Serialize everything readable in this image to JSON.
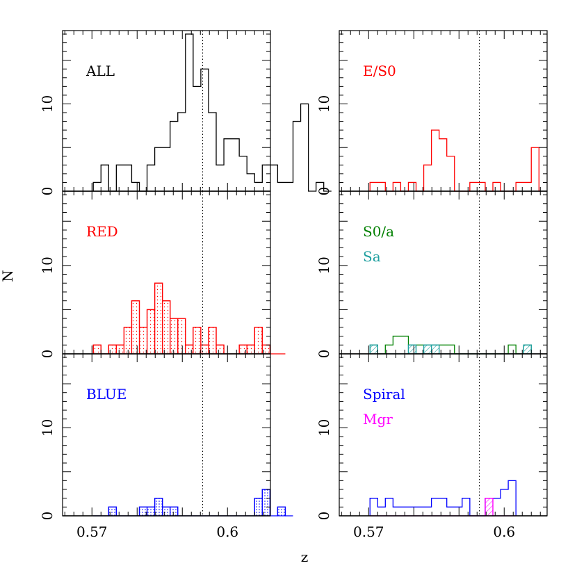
{
  "figure": {
    "ylabel": "N",
    "xlabel": "z",
    "reference_line_z": 0.5945,
    "xtick_labels": [
      "0.57",
      "0.6"
    ],
    "ytick_labels": [
      "0",
      "10"
    ]
  },
  "colors": {
    "black": "#000000",
    "red": "#ff0000",
    "green": "#008000",
    "teal": "#20a0a0",
    "blue": "#0000ff",
    "magenta": "#ff00ff"
  },
  "chart_data": {
    "type": "histogram",
    "xlim": [
      0.5635,
      0.6095
    ],
    "ylim": [
      0,
      18.4
    ],
    "bin_width": 0.0017,
    "bin_start": 0.5703,
    "x_ticks": [
      0.57,
      0.6
    ],
    "y_ticks": [
      0,
      10
    ],
    "grid": false,
    "panels": [
      {
        "id": "all",
        "label": "ALL",
        "label_color": "black",
        "series": [
          {
            "name": "ALL",
            "color": "black",
            "hatch": "none",
            "counts": [
              1,
              3,
              0,
              3,
              3,
              1,
              0,
              3,
              5,
              5,
              8,
              9,
              18,
              12,
              14,
              9,
              3,
              6,
              6,
              4,
              2,
              1,
              3,
              3,
              1,
              1,
              8,
              10,
              0,
              1,
              0
            ]
          }
        ]
      },
      {
        "id": "es0",
        "label": "E/S0",
        "label_color": "red",
        "series": [
          {
            "name": "E/S0",
            "color": "red",
            "hatch": "none",
            "counts": [
              1,
              1,
              0,
              1,
              0,
              1,
              0,
              3,
              7,
              6,
              4,
              0,
              0,
              1,
              1,
              0,
              1,
              0,
              0,
              1,
              1,
              5
            ]
          }
        ]
      },
      {
        "id": "red",
        "label": "RED",
        "label_color": "red",
        "series": [
          {
            "name": "RED",
            "color": "red",
            "hatch": "dots",
            "counts": [
              1,
              0,
              1,
              1,
              3,
              6,
              3,
              5,
              8,
              6,
              4,
              4,
              1,
              3,
              1,
              3,
              1,
              0,
              0,
              1,
              1,
              3,
              1,
              0,
              0
            ]
          }
        ]
      },
      {
        "id": "s0a",
        "label": "S0/a",
        "label_color": "green",
        "label2": "Sa",
        "label2_color": "teal",
        "series": [
          {
            "name": "S0/a",
            "color": "green",
            "hatch": "none",
            "counts": [
              1,
              0,
              1,
              2,
              2,
              1,
              1,
              1,
              1,
              1,
              1,
              0,
              0,
              0,
              0,
              0,
              0,
              0,
              1,
              0,
              1
            ]
          },
          {
            "name": "Sa",
            "color": "teal",
            "hatch": "diagonal",
            "counts": [
              1,
              0,
              0,
              0,
              0,
              1,
              0,
              1,
              1,
              0,
              0,
              0,
              0,
              0,
              0,
              0,
              0,
              0,
              0,
              0,
              1
            ]
          }
        ]
      },
      {
        "id": "blue",
        "label": "BLUE",
        "label_color": "blue",
        "series": [
          {
            "name": "BLUE",
            "color": "blue",
            "hatch": "dots",
            "counts": [
              0,
              0,
              1,
              0,
              0,
              0,
              1,
              1,
              2,
              1,
              1,
              0,
              0,
              0,
              0,
              0,
              0,
              0,
              0,
              0,
              0,
              2,
              3,
              0,
              1,
              0
            ]
          }
        ]
      },
      {
        "id": "spiral",
        "label": "Spiral",
        "label_color": "blue",
        "label2": "Mgr",
        "label2_color": "magenta",
        "series": [
          {
            "name": "Spiral",
            "color": "blue",
            "hatch": "none",
            "counts": [
              2,
              1,
              2,
              1,
              1,
              1,
              1,
              1,
              2,
              2,
              1,
              1,
              2,
              0,
              0,
              2,
              2,
              3,
              4
            ]
          },
          {
            "name": "Mgr",
            "color": "magenta",
            "hatch": "diagonal",
            "counts": [
              0,
              0,
              0,
              0,
              0,
              0,
              0,
              0,
              0,
              0,
              0,
              0,
              0,
              0,
              0,
              2,
              0,
              0,
              0
            ]
          }
        ]
      }
    ]
  }
}
